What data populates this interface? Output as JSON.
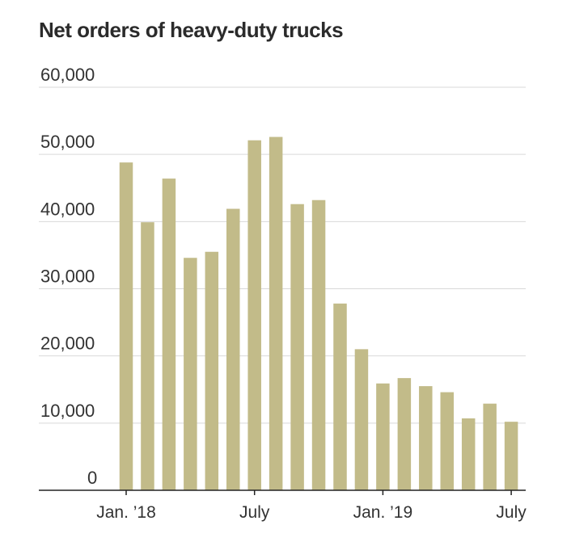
{
  "chart_data": {
    "type": "bar",
    "title": "Net orders of heavy-duty trucks",
    "xlabel": "",
    "ylabel": "",
    "ylim": [
      0,
      60000
    ],
    "y_ticks": [
      {
        "value": 0,
        "label": "0"
      },
      {
        "value": 10000,
        "label": "10,000"
      },
      {
        "value": 20000,
        "label": "20,000"
      },
      {
        "value": 30000,
        "label": "30,000"
      },
      {
        "value": 40000,
        "label": "40,000"
      },
      {
        "value": 50000,
        "label": "50,000"
      },
      {
        "value": 60000,
        "label": "60,000"
      }
    ],
    "x_ticks": [
      {
        "index": 0,
        "label": "Jan. ’18"
      },
      {
        "index": 6,
        "label": "July"
      },
      {
        "index": 12,
        "label": "Jan. ’19"
      },
      {
        "index": 18,
        "label": "July"
      }
    ],
    "grid": true,
    "bar_color": "#c2bb89",
    "values": [
      48800,
      39900,
      46400,
      34600,
      35500,
      41900,
      52100,
      52600,
      42600,
      43200,
      27800,
      21000,
      15900,
      16700,
      15500,
      14600,
      10700,
      12900,
      10200
    ]
  }
}
